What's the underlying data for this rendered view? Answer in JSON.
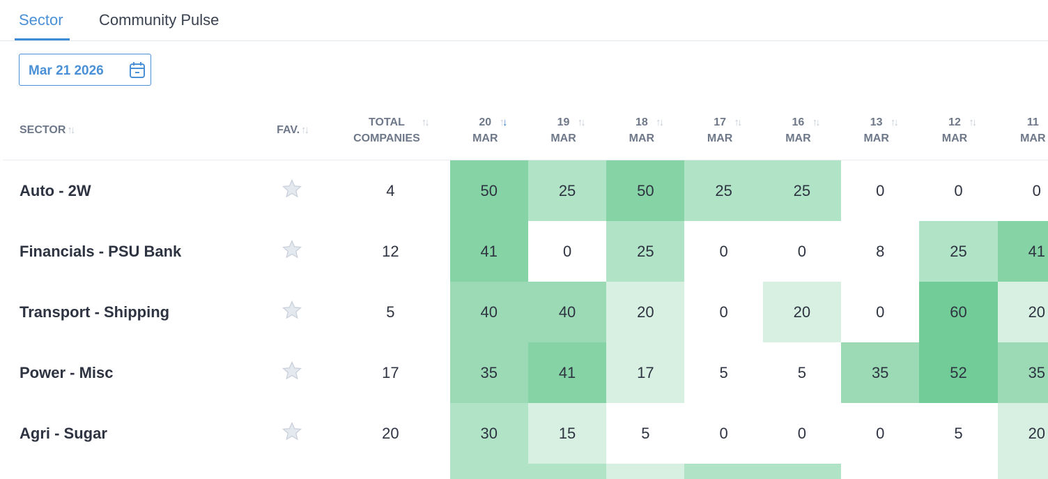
{
  "tabs": [
    {
      "label": "Sector",
      "active": true
    },
    {
      "label": "Community Pulse",
      "active": false
    }
  ],
  "date_picker": {
    "value": "Mar 21 2026",
    "icon": "calendar-icon"
  },
  "table": {
    "headers": {
      "sector": "SECTOR",
      "fav": "FAV.",
      "total_line1": "TOTAL",
      "total_line2": "COMPANIES"
    },
    "date_columns": [
      {
        "day": "20",
        "month": "MAR",
        "sorted": "desc"
      },
      {
        "day": "19",
        "month": "MAR"
      },
      {
        "day": "18",
        "month": "MAR"
      },
      {
        "day": "17",
        "month": "MAR"
      },
      {
        "day": "16",
        "month": "MAR"
      },
      {
        "day": "13",
        "month": "MAR"
      },
      {
        "day": "12",
        "month": "MAR"
      },
      {
        "day": "11",
        "month": "MAR"
      }
    ],
    "rows": [
      {
        "sector": "Auto - 2W",
        "fav": false,
        "total": "4",
        "values": [
          50,
          25,
          50,
          25,
          25,
          0,
          0,
          0
        ]
      },
      {
        "sector": "Financials - PSU Bank",
        "fav": false,
        "total": "12",
        "values": [
          41,
          0,
          25,
          0,
          0,
          8,
          25,
          41
        ]
      },
      {
        "sector": "Transport - Shipping",
        "fav": false,
        "total": "5",
        "values": [
          40,
          40,
          20,
          0,
          20,
          0,
          60,
          20
        ]
      },
      {
        "sector": "Power - Misc",
        "fav": false,
        "total": "17",
        "values": [
          35,
          41,
          17,
          5,
          5,
          35,
          52,
          35
        ]
      },
      {
        "sector": "Agri - Sugar",
        "fav": false,
        "total": "20",
        "values": [
          30,
          15,
          5,
          0,
          0,
          0,
          5,
          20
        ]
      }
    ],
    "partial_row_colors": [
      "#b1e3c6",
      "#b1e3c6",
      "#d8f0e2",
      "#b1e3c6",
      "#b1e3c6",
      "#ffffff",
      "#ffffff",
      "#d8f0e2"
    ]
  },
  "heat_scale": [
    {
      "min": 52,
      "color": "#72cc98"
    },
    {
      "min": 41,
      "color": "#86d3a5"
    },
    {
      "min": 35,
      "color": "#9bdab5"
    },
    {
      "min": 25,
      "color": "#b1e3c6"
    },
    {
      "min": 15,
      "color": "#d8f0e2"
    },
    {
      "min": 0,
      "color": "#ffffff"
    }
  ],
  "colors": {
    "accent": "#4a90d6"
  }
}
